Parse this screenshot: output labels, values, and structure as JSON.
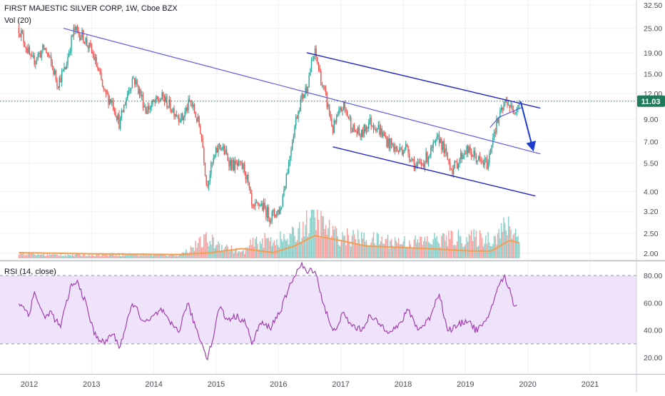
{
  "header": {
    "title": "FIRST MAJESTIC SILVER CORP, 1W, Cboe BZX",
    "vol_label": "Vol (20)",
    "rsi_label": "RSI (14, close)"
  },
  "price_badge": "11.03",
  "colors": {
    "up": "#26a69a",
    "down": "#ef5350",
    "trendline": "#5c5ce0",
    "channel": "#2525c8",
    "arrow": "#1e3cd0",
    "vol_ma": "#f0a050",
    "rsi_line": "#a040b0",
    "rsi_band": "#efe3fb",
    "price_line": "#1e7a5a"
  },
  "chart_data": [
    {
      "type": "candlestick",
      "title": "FIRST MAJESTIC SILVER CORP, 1W, Cboe BZX",
      "x_ticks": [
        "2012",
        "2013",
        "2014",
        "2015",
        "2016",
        "2017",
        "2018",
        "2019",
        "2020",
        "2021"
      ],
      "y_scale": "log",
      "y_ticks": [
        "32.50",
        "25.00",
        "19.00",
        "15.00",
        "12.00",
        "9.00",
        "7.00",
        "5.50",
        "4.00",
        "3.20",
        "2.50",
        "2.00"
      ],
      "ylim": [
        1.95,
        33
      ],
      "last_price": 11.03,
      "price_path": [
        [
          "2011-11-01",
          25.0
        ],
        [
          "2012-01-15",
          17.0
        ],
        [
          "2012-04-01",
          20.0
        ],
        [
          "2012-06-15",
          13.5
        ],
        [
          "2012-08-01",
          16.0
        ],
        [
          "2012-09-20",
          24.5
        ],
        [
          "2012-11-10",
          23.0
        ],
        [
          "2013-01-15",
          18.0
        ],
        [
          "2013-03-15",
          12.0
        ],
        [
          "2013-05-01",
          11.0
        ],
        [
          "2013-06-15",
          8.5
        ],
        [
          "2013-09-01",
          14.5
        ],
        [
          "2013-11-15",
          10.0
        ],
        [
          "2014-02-20",
          11.5
        ],
        [
          "2014-04-15",
          10.2
        ],
        [
          "2014-06-15",
          9.0
        ],
        [
          "2014-08-01",
          11.0
        ],
        [
          "2014-10-01",
          8.0
        ],
        [
          "2014-11-05",
          4.3
        ],
        [
          "2015-01-20",
          6.8
        ],
        [
          "2015-04-01",
          5.4
        ],
        [
          "2015-06-15",
          5.2
        ],
        [
          "2015-08-01",
          3.2
        ],
        [
          "2015-09-15",
          3.5
        ],
        [
          "2015-11-15",
          3.0
        ],
        [
          "2016-01-15",
          3.3
        ],
        [
          "2016-03-01",
          5.5
        ],
        [
          "2016-05-01",
          10.5
        ],
        [
          "2016-06-15",
          13.0
        ],
        [
          "2016-08-01",
          19.0
        ],
        [
          "2016-09-15",
          13.0
        ],
        [
          "2016-11-15",
          8.0
        ],
        [
          "2017-01-15",
          10.5
        ],
        [
          "2017-03-15",
          8.0
        ],
        [
          "2017-05-01",
          7.5
        ],
        [
          "2017-06-15",
          8.8
        ],
        [
          "2017-08-01",
          8.3
        ],
        [
          "2017-10-01",
          7.0
        ],
        [
          "2017-12-01",
          6.3
        ],
        [
          "2018-01-15",
          6.6
        ],
        [
          "2018-03-20",
          5.2
        ],
        [
          "2018-05-01",
          5.6
        ],
        [
          "2018-06-15",
          6.3
        ],
        [
          "2018-08-01",
          7.3
        ],
        [
          "2018-09-15",
          5.8
        ],
        [
          "2018-10-20",
          5.1
        ],
        [
          "2019-01-01",
          6.4
        ],
        [
          "2019-03-01",
          5.9
        ],
        [
          "2019-04-01",
          5.5
        ],
        [
          "2019-05-15",
          5.5
        ],
        [
          "2019-06-15",
          7.8
        ],
        [
          "2019-08-01",
          9.8
        ],
        [
          "2019-09-01",
          11.2
        ],
        [
          "2019-10-01",
          9.8
        ],
        [
          "2019-11-15",
          11.0
        ]
      ],
      "volume_ylim": [
        0,
        30000000
      ],
      "volume_path": [
        [
          "2011-11-01",
          3500000
        ],
        [
          "2012-06-01",
          2500000
        ],
        [
          "2013-06-01",
          3000000
        ],
        [
          "2014-06-01",
          2500000
        ],
        [
          "2014-11-05",
          14000000
        ],
        [
          "2015-06-01",
          4000000
        ],
        [
          "2015-08-01",
          11000000
        ],
        [
          "2015-11-15",
          14000000
        ],
        [
          "2016-03-01",
          14000000
        ],
        [
          "2016-06-15",
          26000000
        ],
        [
          "2016-08-01",
          30000000
        ],
        [
          "2016-12-01",
          17000000
        ],
        [
          "2017-06-01",
          14000000
        ],
        [
          "2018-03-01",
          12000000
        ],
        [
          "2018-10-20",
          15000000
        ],
        [
          "2019-06-15",
          15000000
        ],
        [
          "2019-09-01",
          24000000
        ],
        [
          "2019-11-15",
          16000000
        ]
      ],
      "volume_ma_path": [
        [
          "2011-11-01",
          3500000
        ],
        [
          "2013-01-01",
          2800000
        ],
        [
          "2014-06-01",
          2300000
        ],
        [
          "2014-12-01",
          3500000
        ],
        [
          "2015-06-01",
          6000000
        ],
        [
          "2015-12-01",
          3500000
        ],
        [
          "2016-04-01",
          7500000
        ],
        [
          "2016-08-01",
          14000000
        ],
        [
          "2017-01-01",
          11000000
        ],
        [
          "2017-06-01",
          7500000
        ],
        [
          "2018-06-01",
          6000000
        ],
        [
          "2019-02-01",
          4500000
        ],
        [
          "2019-06-01",
          4500000
        ],
        [
          "2019-09-15",
          11000000
        ],
        [
          "2019-11-15",
          9500000
        ]
      ],
      "lines": [
        {
          "name": "long downtrend",
          "from": [
            "2012-07-20",
            25.0
          ],
          "to": [
            "2020-03-15",
            6.1
          ]
        },
        {
          "name": "channel top",
          "from": [
            "2016-06-15",
            19.0
          ],
          "to": [
            "2020-03-15",
            10.2
          ]
        },
        {
          "name": "channel bottom",
          "from": [
            "2016-11-15",
            6.6
          ],
          "to": [
            "2020-02-15",
            3.8
          ]
        },
        {
          "name": "pattern support",
          "from": [
            "2019-07-15",
            9.2
          ],
          "to": [
            "2019-12-01",
            10.3
          ]
        },
        {
          "name": "pattern entry",
          "from": [
            "2019-05-25",
            8.2
          ],
          "to": [
            "2019-07-15",
            9.2
          ]
        },
        {
          "name": "projection arrow",
          "from": [
            "2019-11-20",
            11.0
          ],
          "to": [
            "2020-02-01",
            6.4
          ]
        }
      ]
    },
    {
      "type": "line",
      "title": "RSI (14, close)",
      "y_ticks": [
        "80.00",
        "60.00",
        "40.00",
        "20.00"
      ],
      "ylim": [
        8,
        90
      ],
      "levels": [
        80,
        30
      ],
      "series": [
        {
          "name": "RSI",
          "points": [
            [
              "2011-11-01",
              60
            ],
            [
              "2012-01-01",
              52
            ],
            [
              "2012-02-01",
              68
            ],
            [
              "2012-04-01",
              48
            ],
            [
              "2012-05-01",
              54
            ],
            [
              "2012-07-01",
              42
            ],
            [
              "2012-09-01",
              72
            ],
            [
              "2012-10-15",
              75
            ],
            [
              "2012-12-01",
              58
            ],
            [
              "2013-01-15",
              38
            ],
            [
              "2013-03-15",
              30
            ],
            [
              "2013-05-01",
              38
            ],
            [
              "2013-06-15",
              28
            ],
            [
              "2013-09-01",
              60
            ],
            [
              "2013-10-15",
              50
            ],
            [
              "2013-11-15",
              45
            ],
            [
              "2014-02-15",
              55
            ],
            [
              "2014-04-01",
              45
            ],
            [
              "2014-06-01",
              40
            ],
            [
              "2014-07-15",
              60
            ],
            [
              "2014-09-15",
              38
            ],
            [
              "2014-11-10",
              20
            ],
            [
              "2014-12-15",
              35
            ],
            [
              "2015-01-20",
              58
            ],
            [
              "2015-03-01",
              48
            ],
            [
              "2015-05-01",
              50
            ],
            [
              "2015-06-15",
              47
            ],
            [
              "2015-08-01",
              30
            ],
            [
              "2015-09-15",
              45
            ],
            [
              "2015-11-15",
              42
            ],
            [
              "2016-01-15",
              55
            ],
            [
              "2016-04-01",
              80
            ],
            [
              "2016-05-15",
              88
            ],
            [
              "2016-06-15",
              82
            ],
            [
              "2016-08-01",
              85
            ],
            [
              "2016-09-15",
              62
            ],
            [
              "2016-11-15",
              38
            ],
            [
              "2017-01-15",
              52
            ],
            [
              "2017-03-01",
              44
            ],
            [
              "2017-05-01",
              40
            ],
            [
              "2017-06-15",
              50
            ],
            [
              "2017-08-01",
              46
            ],
            [
              "2017-10-01",
              40
            ],
            [
              "2017-12-01",
              42
            ],
            [
              "2018-02-01",
              55
            ],
            [
              "2018-04-01",
              40
            ],
            [
              "2018-06-01",
              48
            ],
            [
              "2018-08-01",
              68
            ],
            [
              "2018-09-15",
              40
            ],
            [
              "2018-11-01",
              42
            ],
            [
              "2019-01-15",
              48
            ],
            [
              "2019-03-01",
              40
            ],
            [
              "2019-05-01",
              45
            ],
            [
              "2019-07-01",
              68
            ],
            [
              "2019-08-15",
              80
            ],
            [
              "2019-09-20",
              68
            ],
            [
              "2019-10-15",
              58
            ],
            [
              "2019-11-01",
              60
            ]
          ]
        }
      ]
    }
  ]
}
